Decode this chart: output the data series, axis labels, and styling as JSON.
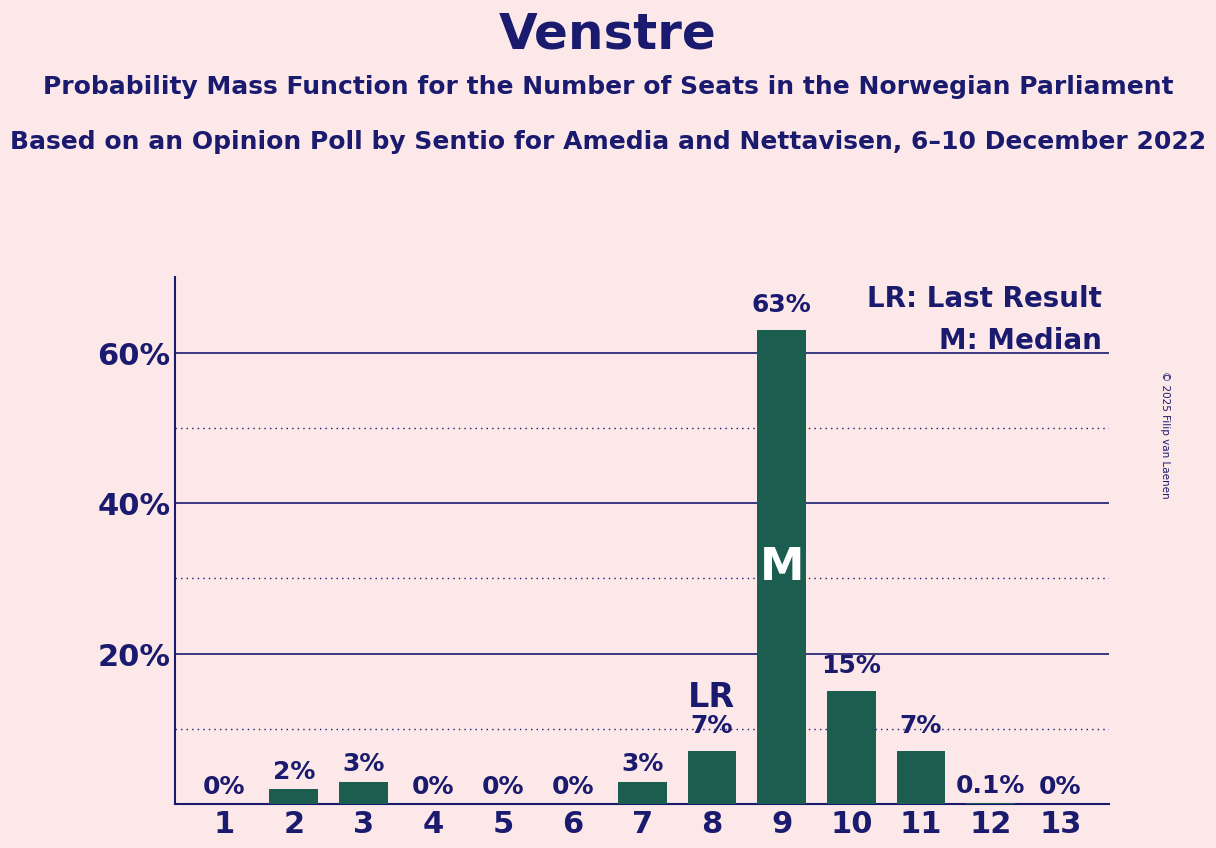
{
  "title": "Venstre",
  "subtitle1": "Probability Mass Function for the Number of Seats in the Norwegian Parliament",
  "subtitle2": "Based on an Opinion Poll by Sentio for Amedia and Nettavisen, 6–10 December 2022",
  "copyright": "© 2025 Filip van Laenen",
  "categories": [
    1,
    2,
    3,
    4,
    5,
    6,
    7,
    8,
    9,
    10,
    11,
    12,
    13
  ],
  "values": [
    0,
    2,
    3,
    0,
    0,
    0,
    3,
    7,
    63,
    15,
    7,
    0.1,
    0
  ],
  "labels": [
    "0%",
    "2%",
    "3%",
    "0%",
    "0%",
    "0%",
    "3%",
    "7%",
    "63%",
    "15%",
    "7%",
    "0.1%",
    "0%"
  ],
  "bar_color": "#1b5e50",
  "background_color": "#fce8e8",
  "title_color": "#1a1a6e",
  "text_color": "#1a1a6e",
  "axis_color": "#1a1a6e",
  "grid_color": "#1a1a6e",
  "ylim": [
    0,
    70
  ],
  "yticks": [
    20,
    40,
    60
  ],
  "ytick_labels": [
    "20%",
    "40%",
    "60%"
  ],
  "lr_seat": 8,
  "median_seat": 9,
  "legend_lr": "LR: Last Result",
  "legend_m": "M: Median",
  "title_fontsize": 36,
  "subtitle_fontsize": 18,
  "tick_fontsize": 22,
  "label_fontsize": 18,
  "legend_fontsize": 20,
  "bar_width": 0.7,
  "solid_levels": [
    20,
    40,
    60
  ],
  "dotted_levels": [
    10,
    30,
    50
  ]
}
